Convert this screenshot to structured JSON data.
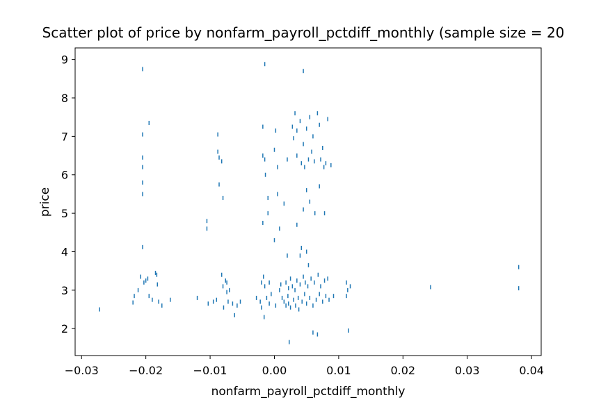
{
  "chart_data": {
    "type": "scatter",
    "title": "Scatter plot of price by nonfarm_payroll_pctdiff_monthly (sample size = 20",
    "xlabel": "nonfarm_payroll_pctdiff_monthly",
    "ylabel": "price",
    "xlim": [
      -0.031,
      0.0415
    ],
    "ylim": [
      1.3,
      9.3
    ],
    "xticks": [
      -0.03,
      -0.02,
      -0.01,
      0.0,
      0.01,
      0.02,
      0.03,
      0.04
    ],
    "xtick_labels": [
      "−0.03",
      "−0.02",
      "−0.01",
      "0.00",
      "0.01",
      "0.02",
      "0.03",
      "0.04"
    ],
    "yticks": [
      2,
      3,
      4,
      5,
      6,
      7,
      8,
      9
    ],
    "ytick_labels": [
      "2",
      "3",
      "4",
      "5",
      "6",
      "7",
      "8",
      "9"
    ],
    "grid": false,
    "marker_color": "#1f77b4",
    "points": [
      [
        -0.0272,
        2.5
      ],
      [
        -0.022,
        2.68
      ],
      [
        -0.0218,
        2.85
      ],
      [
        -0.0212,
        3.0
      ],
      [
        -0.0208,
        3.35
      ],
      [
        -0.0205,
        8.75
      ],
      [
        -0.0205,
        7.05
      ],
      [
        -0.0205,
        6.45
      ],
      [
        -0.0205,
        6.2
      ],
      [
        -0.0205,
        5.8
      ],
      [
        -0.0205,
        5.5
      ],
      [
        -0.0205,
        4.12
      ],
      [
        -0.0203,
        3.2
      ],
      [
        -0.02,
        3.25
      ],
      [
        -0.0197,
        3.3
      ],
      [
        -0.0195,
        7.35
      ],
      [
        -0.0195,
        2.85
      ],
      [
        -0.019,
        2.75
      ],
      [
        -0.0185,
        3.45
      ],
      [
        -0.0183,
        3.4
      ],
      [
        -0.0182,
        3.15
      ],
      [
        -0.018,
        2.7
      ],
      [
        -0.0175,
        2.6
      ],
      [
        -0.0162,
        2.75
      ],
      [
        -0.012,
        2.8
      ],
      [
        -0.0105,
        4.6
      ],
      [
        -0.0105,
        4.8
      ],
      [
        -0.0103,
        2.65
      ],
      [
        -0.0095,
        2.7
      ],
      [
        -0.009,
        2.75
      ],
      [
        -0.0088,
        7.05
      ],
      [
        -0.0088,
        6.6
      ],
      [
        -0.0086,
        6.45
      ],
      [
        -0.0086,
        5.75
      ],
      [
        -0.0082,
        3.4
      ],
      [
        -0.0082,
        6.35
      ],
      [
        -0.008,
        5.4
      ],
      [
        -0.008,
        3.1
      ],
      [
        -0.0079,
        2.55
      ],
      [
        -0.0076,
        3.25
      ],
      [
        -0.0074,
        3.2
      ],
      [
        -0.0074,
        2.95
      ],
      [
        -0.0072,
        2.7
      ],
      [
        -0.007,
        3.0
      ],
      [
        -0.0065,
        2.65
      ],
      [
        -0.0062,
        2.35
      ],
      [
        -0.0058,
        2.6
      ],
      [
        -0.0053,
        2.7
      ],
      [
        -0.0028,
        2.8
      ],
      [
        -0.0022,
        2.7
      ],
      [
        -0.002,
        3.2
      ],
      [
        -0.002,
        2.55
      ],
      [
        -0.0018,
        7.25
      ],
      [
        -0.0018,
        6.5
      ],
      [
        -0.0018,
        4.75
      ],
      [
        -0.0017,
        3.35
      ],
      [
        -0.0016,
        2.3
      ],
      [
        -0.0015,
        8.88
      ],
      [
        -0.0015,
        6.4
      ],
      [
        -0.0015,
        3.1
      ],
      [
        -0.0014,
        6.0
      ],
      [
        -0.0012,
        2.8
      ],
      [
        -0.001,
        5.0
      ],
      [
        -0.001,
        5.4
      ],
      [
        -0.0008,
        3.2
      ],
      [
        -0.0008,
        2.65
      ],
      [
        -0.0005,
        2.9
      ],
      [
        0.0,
        6.65
      ],
      [
        0.0,
        4.3
      ],
      [
        0.0002,
        7.15
      ],
      [
        0.0002,
        2.6
      ],
      [
        0.0005,
        6.2
      ],
      [
        0.0005,
        5.5
      ],
      [
        0.0008,
        4.6
      ],
      [
        0.0008,
        3.0
      ],
      [
        0.001,
        3.15
      ],
      [
        0.0012,
        2.8
      ],
      [
        0.0015,
        5.25
      ],
      [
        0.0015,
        2.7
      ],
      [
        0.0018,
        3.2
      ],
      [
        0.0018,
        2.6
      ],
      [
        0.002,
        6.4
      ],
      [
        0.002,
        3.9
      ],
      [
        0.0021,
        2.85
      ],
      [
        0.0022,
        3.05
      ],
      [
        0.0022,
        2.65
      ],
      [
        0.0023,
        1.65
      ],
      [
        0.0025,
        3.3
      ],
      [
        0.0025,
        2.55
      ],
      [
        0.0028,
        7.25
      ],
      [
        0.0028,
        3.1
      ],
      [
        0.003,
        2.75
      ],
      [
        0.003,
        6.95
      ],
      [
        0.0032,
        7.6
      ],
      [
        0.0032,
        3.0
      ],
      [
        0.0033,
        2.6
      ],
      [
        0.0035,
        7.15
      ],
      [
        0.0035,
        6.5
      ],
      [
        0.0035,
        4.7
      ],
      [
        0.0035,
        3.25
      ],
      [
        0.0037,
        2.8
      ],
      [
        0.0038,
        2.5
      ],
      [
        0.004,
        3.9
      ],
      [
        0.004,
        7.4
      ],
      [
        0.004,
        3.15
      ],
      [
        0.0042,
        6.3
      ],
      [
        0.0042,
        4.1
      ],
      [
        0.0043,
        2.7
      ],
      [
        0.0045,
        8.7
      ],
      [
        0.0045,
        6.8
      ],
      [
        0.0045,
        5.1
      ],
      [
        0.0045,
        3.35
      ],
      [
        0.0047,
        6.2
      ],
      [
        0.0047,
        2.9
      ],
      [
        0.0048,
        3.2
      ],
      [
        0.005,
        7.2
      ],
      [
        0.005,
        5.6
      ],
      [
        0.005,
        4.0
      ],
      [
        0.005,
        2.65
      ],
      [
        0.0052,
        3.1
      ],
      [
        0.0053,
        6.4
      ],
      [
        0.0053,
        3.65
      ],
      [
        0.0055,
        7.5
      ],
      [
        0.0055,
        5.3
      ],
      [
        0.0055,
        2.8
      ],
      [
        0.0057,
        3.3
      ],
      [
        0.0058,
        6.6
      ],
      [
        0.006,
        7.0
      ],
      [
        0.006,
        1.9
      ],
      [
        0.006,
        2.6
      ],
      [
        0.0062,
        6.35
      ],
      [
        0.0062,
        3.2
      ],
      [
        0.0063,
        5.0
      ],
      [
        0.0065,
        2.75
      ],
      [
        0.0067,
        7.6
      ],
      [
        0.0067,
        1.85
      ],
      [
        0.0068,
        3.4
      ],
      [
        0.007,
        7.3
      ],
      [
        0.007,
        5.7
      ],
      [
        0.007,
        2.9
      ],
      [
        0.0072,
        6.4
      ],
      [
        0.0072,
        3.1
      ],
      [
        0.0075,
        6.7
      ],
      [
        0.0075,
        2.7
      ],
      [
        0.0077,
        6.2
      ],
      [
        0.0078,
        5.0
      ],
      [
        0.0078,
        3.25
      ],
      [
        0.008,
        6.3
      ],
      [
        0.008,
        2.85
      ],
      [
        0.0083,
        7.45
      ],
      [
        0.0083,
        3.3
      ],
      [
        0.0085,
        2.75
      ],
      [
        0.0088,
        6.25
      ],
      [
        0.0092,
        2.85
      ],
      [
        0.0112,
        3.2
      ],
      [
        0.0112,
        2.85
      ],
      [
        0.0114,
        3.0
      ],
      [
        0.0115,
        1.95
      ],
      [
        0.0118,
        3.1
      ],
      [
        0.0243,
        3.08
      ],
      [
        0.038,
        3.6
      ],
      [
        0.038,
        3.05
      ]
    ]
  }
}
